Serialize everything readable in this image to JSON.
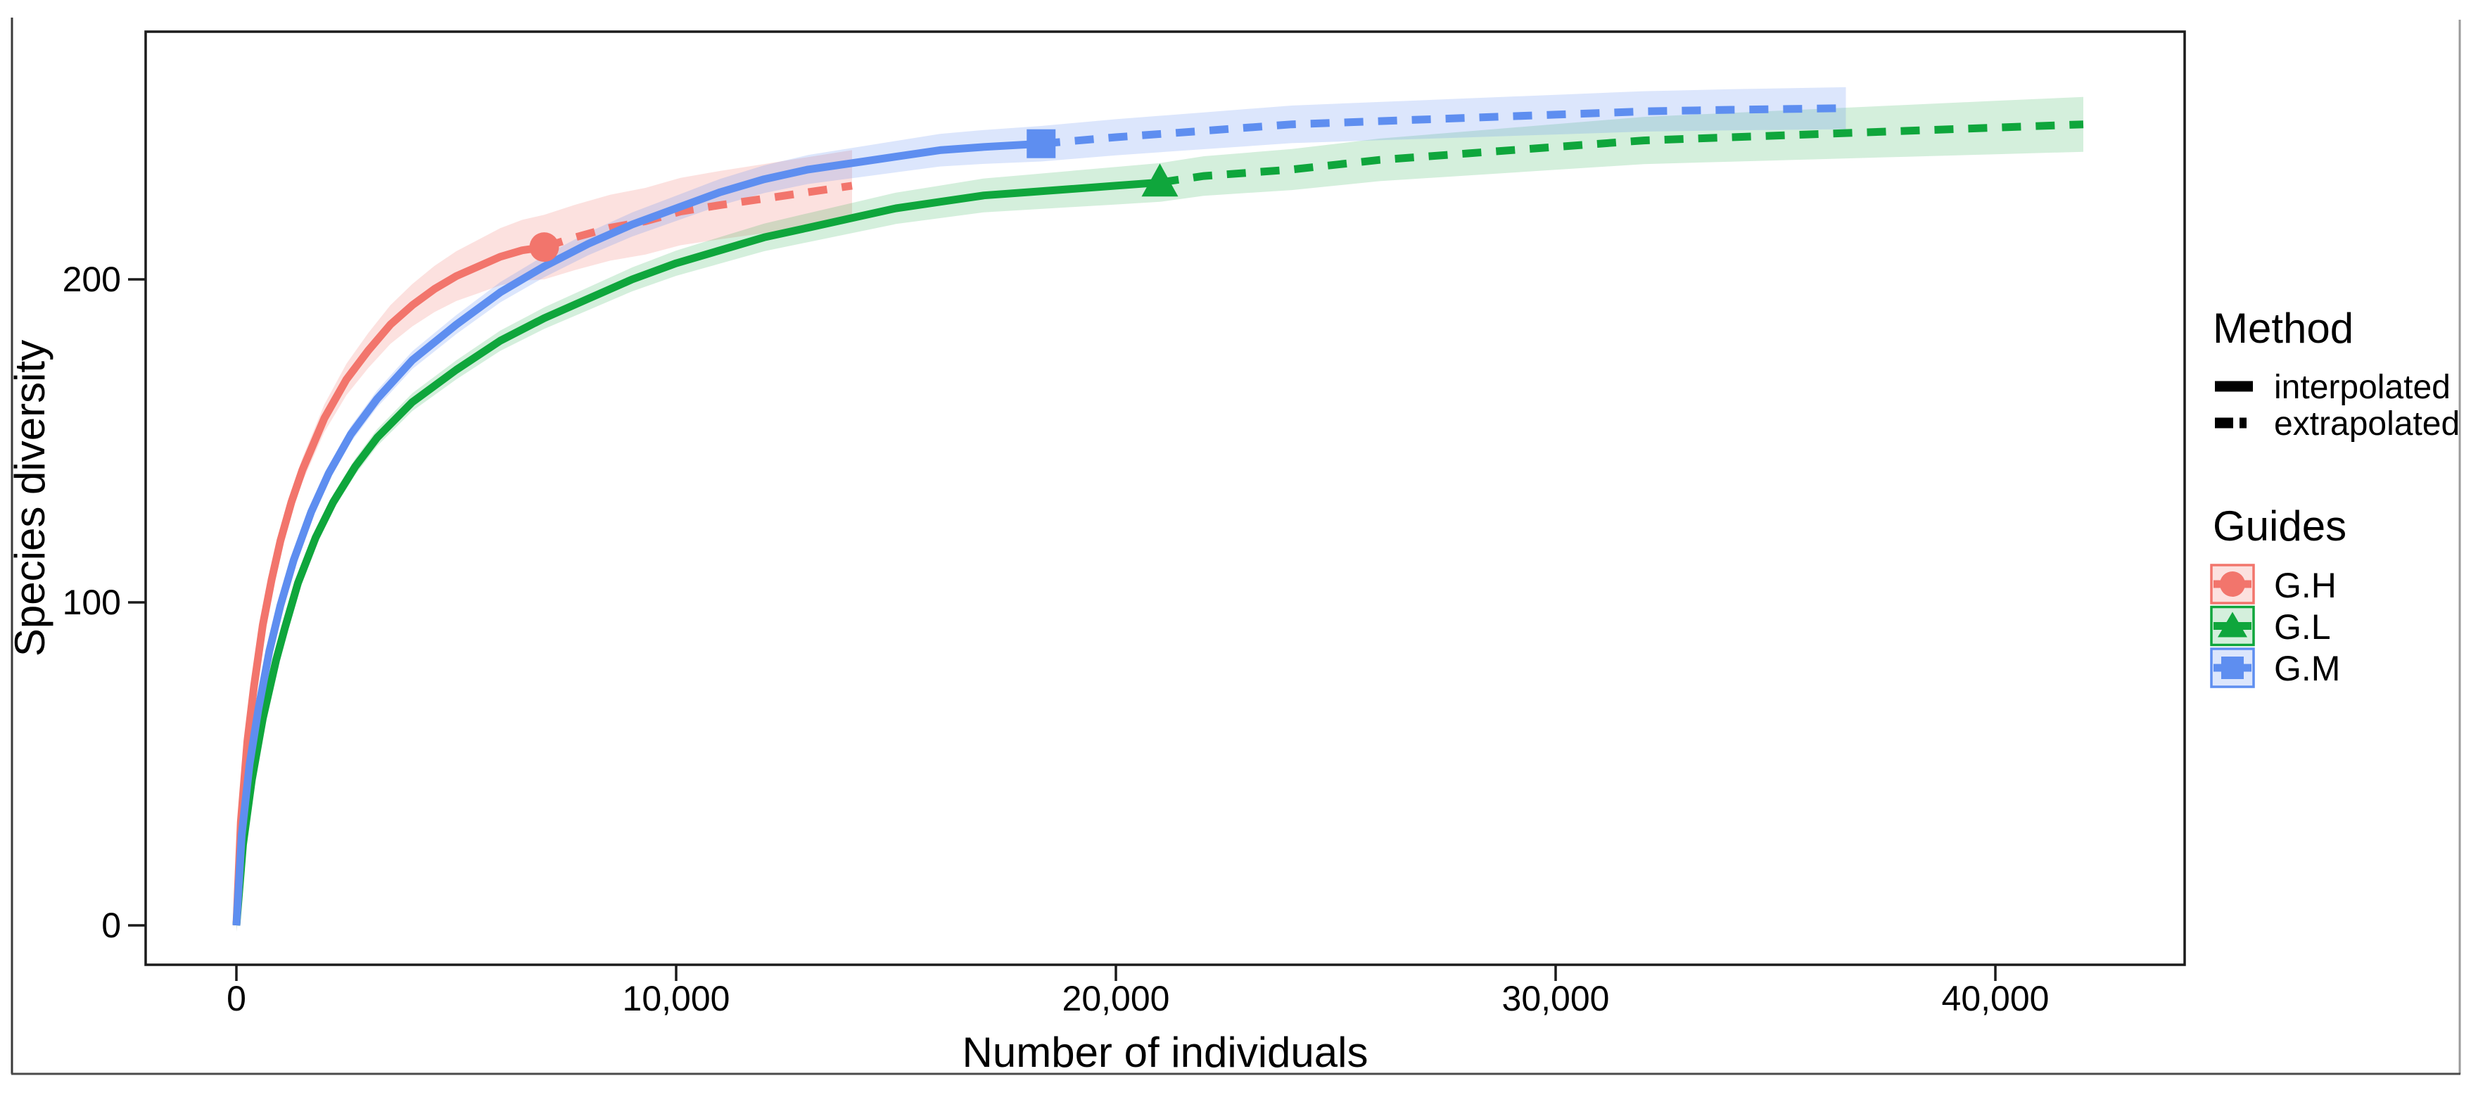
{
  "chart_data": {
    "type": "line",
    "title": "",
    "xlabel": "Number of individuals",
    "ylabel": "Species diversity",
    "xlim": [
      -2064,
      44304
    ],
    "ylim": [
      -12,
      277
    ],
    "grid": false,
    "x_ticks": [
      {
        "value": 0,
        "label": "0"
      },
      {
        "value": 10000,
        "label": "10,000"
      },
      {
        "value": 20000,
        "label": "20,000"
      },
      {
        "value": 30000,
        "label": "30,000"
      },
      {
        "value": 40000,
        "label": "40,000"
      }
    ],
    "y_ticks": [
      {
        "value": 0,
        "label": "0"
      },
      {
        "value": 100,
        "label": "100"
      },
      {
        "value": 200,
        "label": "200"
      }
    ],
    "legend": {
      "position": "right",
      "method_title": "Method",
      "methods": [
        {
          "label": "interpolated",
          "style": "solid"
        },
        {
          "label": "extrapolated",
          "style": "dashed"
        }
      ],
      "guides_title": "Guides",
      "guides": [
        {
          "label": "G.H",
          "marker": "circle",
          "color": "#F2756C"
        },
        {
          "label": "G.L",
          "marker": "triangle",
          "color": "#0FA63C"
        },
        {
          "label": "G.M",
          "marker": "square",
          "color": "#5E8EF0"
        }
      ]
    },
    "series": [
      {
        "name": "G.H",
        "marker": "circle",
        "color": "#F2756C",
        "ribbon_color": "rgba(242,117,108,0.22)",
        "reference_point": {
          "x": 7000,
          "y": 210
        },
        "extrapolation_end": {
          "x": 14000,
          "y": 229
        },
        "ribbon_halfwidth": [
          2,
          10,
          11
        ],
        "interpolated": [
          [
            0,
            0
          ],
          [
            100,
            32
          ],
          [
            250,
            57
          ],
          [
            400,
            74
          ],
          [
            600,
            93
          ],
          [
            800,
            107
          ],
          [
            1000,
            119
          ],
          [
            1250,
            131
          ],
          [
            1500,
            141
          ],
          [
            2000,
            157
          ],
          [
            2500,
            169
          ],
          [
            3000,
            178
          ],
          [
            3500,
            186
          ],
          [
            4000,
            192
          ],
          [
            4500,
            197
          ],
          [
            5000,
            201
          ],
          [
            5500,
            204
          ],
          [
            6000,
            207
          ],
          [
            6500,
            209
          ],
          [
            7000,
            210
          ]
        ],
        "extrapolated": [
          [
            7000,
            210
          ],
          [
            7700,
            213
          ],
          [
            8500,
            216
          ],
          [
            9300,
            218
          ],
          [
            10100,
            221
          ],
          [
            11000,
            223
          ],
          [
            12000,
            225
          ],
          [
            13000,
            227
          ],
          [
            14000,
            229
          ]
        ]
      },
      {
        "name": "G.L",
        "marker": "triangle",
        "color": "#0FA63C",
        "ribbon_color": "rgba(15,166,60,0.18)",
        "reference_point": {
          "x": 21000,
          "y": 230
        },
        "extrapolation_end": {
          "x": 42000,
          "y": 248
        },
        "ribbon_halfwidth": [
          2,
          6,
          8.5
        ],
        "interpolated": [
          [
            0,
            0
          ],
          [
            150,
            25
          ],
          [
            350,
            45
          ],
          [
            600,
            64
          ],
          [
            900,
            82
          ],
          [
            1100,
            92
          ],
          [
            1400,
            106
          ],
          [
            1800,
            120
          ],
          [
            2200,
            131
          ],
          [
            2700,
            142
          ],
          [
            3200,
            151
          ],
          [
            4000,
            162
          ],
          [
            5000,
            172
          ],
          [
            6000,
            181
          ],
          [
            7000,
            188
          ],
          [
            8000,
            194
          ],
          [
            9000,
            200
          ],
          [
            10000,
            205
          ],
          [
            11000,
            209
          ],
          [
            12000,
            213
          ],
          [
            13000,
            216
          ],
          [
            14000,
            219
          ],
          [
            15000,
            222
          ],
          [
            16000,
            224
          ],
          [
            17000,
            226
          ],
          [
            18000,
            227
          ],
          [
            19000,
            228
          ],
          [
            20000,
            229
          ],
          [
            21000,
            230
          ]
        ],
        "extrapolated": [
          [
            21000,
            230
          ],
          [
            22000,
            232
          ],
          [
            24000,
            234
          ],
          [
            26000,
            237
          ],
          [
            28000,
            239
          ],
          [
            30000,
            241
          ],
          [
            32000,
            243
          ],
          [
            34000,
            244
          ],
          [
            36000,
            245
          ],
          [
            38000,
            246
          ],
          [
            40000,
            247
          ],
          [
            42000,
            248
          ]
        ]
      },
      {
        "name": "G.M",
        "marker": "square",
        "color": "#5E8EF0",
        "ribbon_color": "rgba(94,142,240,0.22)",
        "reference_point": {
          "x": 18300,
          "y": 242
        },
        "extrapolation_end": {
          "x": 36600,
          "y": 253
        },
        "ribbon_halfwidth": [
          2,
          5.5,
          6.5
        ],
        "interpolated": [
          [
            0,
            0
          ],
          [
            120,
            28
          ],
          [
            300,
            50
          ],
          [
            500,
            67
          ],
          [
            750,
            85
          ],
          [
            1000,
            99
          ],
          [
            1300,
            113
          ],
          [
            1700,
            128
          ],
          [
            2100,
            140
          ],
          [
            2600,
            152
          ],
          [
            3200,
            163
          ],
          [
            4000,
            175
          ],
          [
            5000,
            186
          ],
          [
            6000,
            196
          ],
          [
            7000,
            204
          ],
          [
            8000,
            211
          ],
          [
            9000,
            217
          ],
          [
            10000,
            222
          ],
          [
            11000,
            227
          ],
          [
            12000,
            231
          ],
          [
            13000,
            234
          ],
          [
            14000,
            236
          ],
          [
            15000,
            238
          ],
          [
            16000,
            240
          ],
          [
            17000,
            241
          ],
          [
            18300,
            242
          ]
        ],
        "extrapolated": [
          [
            18300,
            242
          ],
          [
            20000,
            244
          ],
          [
            22000,
            246
          ],
          [
            24000,
            248
          ],
          [
            26000,
            249
          ],
          [
            28000,
            250
          ],
          [
            30000,
            251
          ],
          [
            32000,
            252
          ],
          [
            34000,
            252.5
          ],
          [
            36600,
            253
          ]
        ]
      }
    ]
  }
}
